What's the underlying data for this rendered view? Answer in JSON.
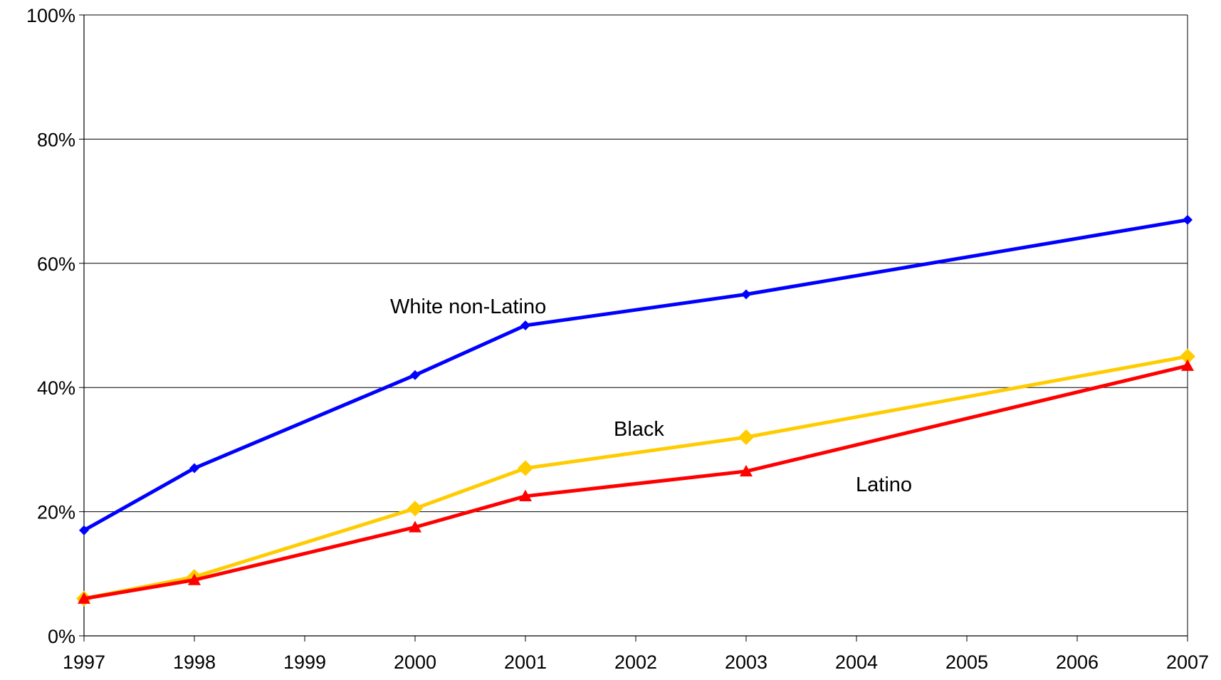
{
  "chart_data": {
    "type": "line",
    "title": "",
    "xlabel": "",
    "ylabel": "",
    "x_ticks": [
      "1997",
      "1998",
      "1999",
      "2000",
      "2001",
      "2002",
      "2003",
      "2004",
      "2005",
      "2006",
      "2007"
    ],
    "y_ticks": [
      "0%",
      "20%",
      "40%",
      "60%",
      "80%",
      "100%"
    ],
    "xlim": [
      1997,
      2007
    ],
    "ylim": [
      0,
      100
    ],
    "grid": "horizontal",
    "legend": "none",
    "series": [
      {
        "name": "White non-Latino",
        "color": "#0000ff",
        "marker": "diamond-small",
        "points": [
          [
            1997,
            17
          ],
          [
            1998,
            27
          ],
          [
            2000,
            42
          ],
          [
            2001,
            50
          ],
          [
            2003,
            55
          ],
          [
            2007,
            67
          ]
        ]
      },
      {
        "name": "Black",
        "color": "#ffcc00",
        "marker": "diamond-large",
        "points": [
          [
            1997,
            6
          ],
          [
            1998,
            9.5
          ],
          [
            2000,
            20.5
          ],
          [
            2001,
            27
          ],
          [
            2003,
            32
          ],
          [
            2007,
            45
          ]
        ]
      },
      {
        "name": "Latino",
        "color": "#ff0000",
        "marker": "triangle",
        "points": [
          [
            1997,
            6
          ],
          [
            1998,
            9
          ],
          [
            2000,
            17.5
          ],
          [
            2001,
            22.5
          ],
          [
            2003,
            26.5
          ],
          [
            2007,
            43.5
          ]
        ]
      }
    ]
  }
}
